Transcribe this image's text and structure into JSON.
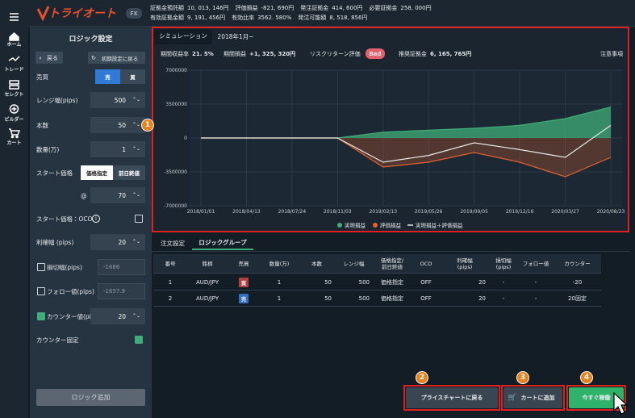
{
  "sidebar": {
    "items": [
      "ホーム",
      "トレード",
      "セレクト",
      "ビルダー",
      "カート"
    ]
  },
  "header": {
    "logo": "トライオート",
    "badge": "FX",
    "account": [
      [
        {
          "label": "証拠金預託額",
          "value": "10, 013, 146円"
        },
        {
          "label": "評価損益",
          "value": "-821, 690円"
        },
        {
          "label": "発注証拠金",
          "value": "414, 600円"
        },
        {
          "label": "必要証拠金",
          "value": "258, 000円"
        }
      ],
      [
        {
          "label": "有効証拠金額",
          "value": "9, 191, 456円"
        },
        {
          "label": "有効比率",
          "value": "3562. 580%"
        },
        {
          "label": "発注可能額",
          "value": "8, 518, 856円"
        }
      ]
    ]
  },
  "panel": {
    "title": "ロジック設定",
    "back": "戻る",
    "reset": "初期設定に戻る",
    "fields": [
      {
        "label": "売買",
        "options": [
          "売",
          "買"
        ]
      },
      {
        "label": "レンジ幅(pips)",
        "value": "500"
      },
      {
        "label": "本数",
        "value": "50"
      },
      {
        "label": "数量(万)",
        "value": "1"
      },
      {
        "label": "スタート価格",
        "options": [
          "価格指定",
          "前日終値"
        ]
      },
      {
        "label": "@",
        "value": "70"
      },
      {
        "label": "スタート価格：OCO",
        "checked": false
      },
      {
        "label": "利確幅 (pips)",
        "value": "20"
      },
      {
        "label": "損切幅(pips)",
        "value": "-1686",
        "checked": false
      },
      {
        "label": "フォロー値(pips)",
        "value": "-1657.9",
        "checked": false
      },
      {
        "label": "カウンター値(pips)",
        "value": "20",
        "checked": true
      },
      {
        "label": "カウンター固定",
        "checked": true
      }
    ],
    "add": "ロジック追加"
  },
  "simulation": {
    "tabs": [
      "シミュレーション",
      "2018年1月~"
    ],
    "stats": [
      {
        "label": "期間収益率",
        "value": "21. 5%"
      },
      {
        "label": "期間損益",
        "value": "+1, 325, 320円"
      }
    ],
    "risk_label": "リスクリターン評価",
    "risk": "Bad",
    "recommended": {
      "label": "推奨証拠金",
      "value": "6, 165, 765円"
    },
    "notes": "注意事項"
  },
  "chart_data": {
    "type": "area",
    "categories": [
      "2018/01/01",
      "2018/04/13",
      "2018/07/24",
      "2018/11/03",
      "2019/02/13",
      "2019/05/26",
      "2019/09/05",
      "2019/12/16",
      "2020/03/27",
      "2020/08/23"
    ],
    "series": [
      {
        "name": "実現損益",
        "color": "#3fae78",
        "values": [
          0,
          0,
          0,
          0,
          600000,
          800000,
          1000000,
          1300000,
          2000000,
          3200000
        ]
      },
      {
        "name": "評価損益",
        "color": "#e4622f",
        "values": [
          0,
          0,
          0,
          0,
          -3000000,
          -2500000,
          -1500000,
          -2500000,
          -4000000,
          -2000000
        ]
      },
      {
        "name": "実現損益＋評価損益",
        "color": "#e8e8e8",
        "values": [
          0,
          0,
          0,
          0,
          -2500000,
          -1800000,
          -500000,
          -1200000,
          -2000000,
          1300000
        ]
      }
    ],
    "ylim": [
      -7000000,
      7000000
    ],
    "yticks": [
      7000000,
      3500000,
      0,
      -3500000,
      -7000000
    ],
    "grid": true
  },
  "orders": {
    "tabs": [
      "注文設定",
      "ロジックグループ"
    ],
    "columns": [
      [
        "番号"
      ],
      [
        "銘柄"
      ],
      [
        "売買"
      ],
      [
        "数量(万)"
      ],
      [
        "本数"
      ],
      [
        "レンジ幅"
      ],
      [
        "価格指定/",
        "前日終値"
      ],
      [
        "OCO"
      ],
      [
        "利確幅",
        "(pips)"
      ],
      [
        "損切幅",
        "(pips)"
      ],
      [
        "フォロー値"
      ],
      [
        "カウンター"
      ]
    ],
    "rows": [
      [
        "1",
        "AUD/JPY",
        "買",
        "1",
        "50",
        "500",
        "価格指定",
        "OFF",
        "20",
        "-",
        "-",
        "-20"
      ],
      [
        "2",
        "AUD/JPY",
        "売",
        "1",
        "50",
        "500",
        "価格指定",
        "OFF",
        "20",
        "-",
        "-",
        "20固定"
      ]
    ]
  },
  "actions": [
    "プライスチャートに戻る",
    "カートに追加",
    "今すぐ稼働"
  ],
  "callouts": [
    "1",
    "2",
    "3",
    "4"
  ]
}
